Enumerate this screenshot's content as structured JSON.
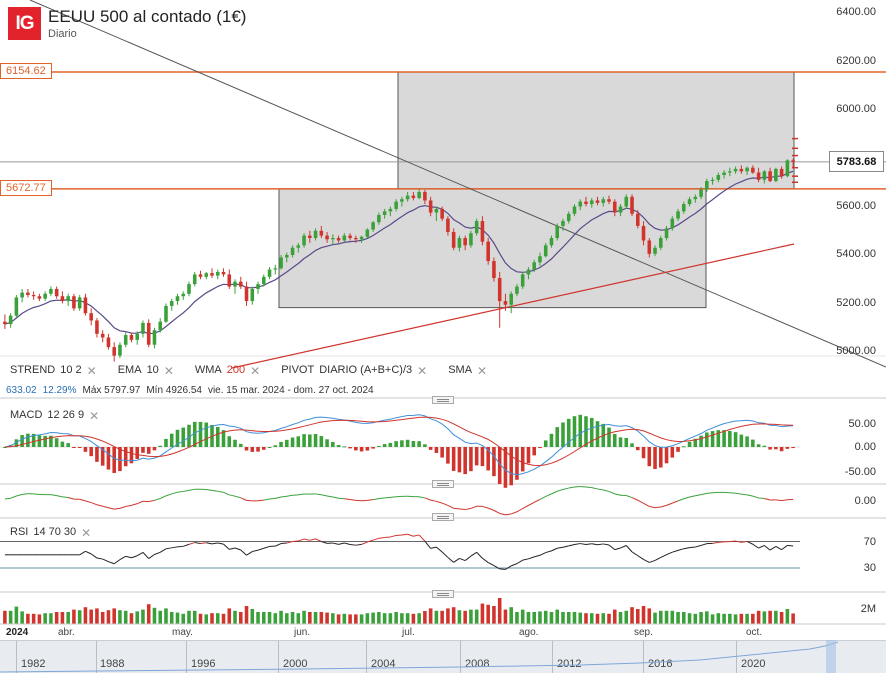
{
  "header": {
    "logo": "IG",
    "title": "EEUU 500 al contado (1€)",
    "subtitle": "Diario"
  },
  "price_axis": {
    "ticks": [
      "6400.00",
      "6200.00",
      "6000.00",
      "5800.00",
      "5600.00",
      "5400.00",
      "5200.00",
      "5000.00"
    ],
    "last_price": "5783.68"
  },
  "price_lines": {
    "upper": "6154.62",
    "lower": "5672.77"
  },
  "indicators": [
    {
      "name": "STREND",
      "params": "10  2",
      "color": "#333333"
    },
    {
      "name": "EMA",
      "params": "10",
      "color": "#333333"
    },
    {
      "name": "WMA",
      "params": "200",
      "color": "#d0342c"
    },
    {
      "name": "PIVOT",
      "params": "DIARIO  (A+B+C)/3",
      "color": "#333333"
    },
    {
      "name": "SMA",
      "params": "",
      "color": "#333333"
    }
  ],
  "stats": {
    "change": "633.02",
    "change_pct": "12.29%",
    "max": "Máx 5797.97",
    "min": "Mín 4926.54",
    "range": "vie. 15 mar. 2024 - dom. 27 oct. 2024"
  },
  "macd": {
    "label": "MACD",
    "params": "12  26  9",
    "ticks": [
      "50.00",
      "0.00",
      "-50.00"
    ],
    "lower_tick": "0.00"
  },
  "rsi": {
    "label": "RSI",
    "params": "14  70  30",
    "ticks": [
      "70",
      "30"
    ]
  },
  "volume": {
    "tick": "2M"
  },
  "x_axis": {
    "labels": [
      "2024",
      "abr.",
      "may.",
      "jun.",
      "jul.",
      "ago.",
      "sep.",
      "oct."
    ]
  },
  "navigator": {
    "years": [
      "1982",
      "1988",
      "1996",
      "2000",
      "2004",
      "2008",
      "2012",
      "2016",
      "2020"
    ]
  },
  "colors": {
    "up": "#3aa13a",
    "down": "#d0342c",
    "accent_line": "#e2632a",
    "ema": "#5a4a8a",
    "wma": "#d0342c",
    "trendline": "#555555",
    "box_fill": "#d9d9d9"
  },
  "chart_data": {
    "type": "candlestick",
    "title": "EEUU 500 al contado (1€)",
    "ylim": [
      4900,
      6450
    ],
    "y_ticks": [
      5000,
      5200,
      5400,
      5600,
      5800,
      6000,
      6200,
      6400
    ],
    "x_labels": [
      "abr.",
      "may.",
      "jun.",
      "jul.",
      "ago.",
      "sep.",
      "oct."
    ],
    "candles": [
      {
        "o": 5125,
        "h": 5155,
        "l": 5095,
        "c": 5115
      },
      {
        "o": 5115,
        "h": 5160,
        "l": 5100,
        "c": 5150
      },
      {
        "o": 5150,
        "h": 5235,
        "l": 5140,
        "c": 5225
      },
      {
        "o": 5225,
        "h": 5260,
        "l": 5205,
        "c": 5245
      },
      {
        "o": 5245,
        "h": 5260,
        "l": 5225,
        "c": 5235
      },
      {
        "o": 5235,
        "h": 5250,
        "l": 5215,
        "c": 5230
      },
      {
        "o": 5230,
        "h": 5240,
        "l": 5210,
        "c": 5220
      },
      {
        "o": 5220,
        "h": 5250,
        "l": 5210,
        "c": 5240
      },
      {
        "o": 5240,
        "h": 5270,
        "l": 5230,
        "c": 5260
      },
      {
        "o": 5260,
        "h": 5270,
        "l": 5220,
        "c": 5230
      },
      {
        "o": 5230,
        "h": 5250,
        "l": 5200,
        "c": 5210
      },
      {
        "o": 5210,
        "h": 5240,
        "l": 5190,
        "c": 5230
      },
      {
        "o": 5230,
        "h": 5240,
        "l": 5170,
        "c": 5180
      },
      {
        "o": 5180,
        "h": 5235,
        "l": 5170,
        "c": 5225
      },
      {
        "o": 5225,
        "h": 5240,
        "l": 5150,
        "c": 5160
      },
      {
        "o": 5160,
        "h": 5180,
        "l": 5110,
        "c": 5130
      },
      {
        "o": 5130,
        "h": 5140,
        "l": 5060,
        "c": 5075
      },
      {
        "o": 5075,
        "h": 5090,
        "l": 5040,
        "c": 5060
      },
      {
        "o": 5060,
        "h": 5075,
        "l": 5010,
        "c": 5020
      },
      {
        "o": 5020,
        "h": 5040,
        "l": 4960,
        "c": 4985
      },
      {
        "o": 4985,
        "h": 5040,
        "l": 4975,
        "c": 5030
      },
      {
        "o": 5030,
        "h": 5080,
        "l": 5020,
        "c": 5070
      },
      {
        "o": 5070,
        "h": 5080,
        "l": 5040,
        "c": 5050
      },
      {
        "o": 5050,
        "h": 5085,
        "l": 5030,
        "c": 5075
      },
      {
        "o": 5075,
        "h": 5130,
        "l": 5060,
        "c": 5120
      },
      {
        "o": 5120,
        "h": 5135,
        "l": 5020,
        "c": 5030
      },
      {
        "o": 5030,
        "h": 5100,
        "l": 5015,
        "c": 5090
      },
      {
        "o": 5090,
        "h": 5140,
        "l": 5080,
        "c": 5125
      },
      {
        "o": 5125,
        "h": 5200,
        "l": 5120,
        "c": 5190
      },
      {
        "o": 5190,
        "h": 5220,
        "l": 5170,
        "c": 5210
      },
      {
        "o": 5210,
        "h": 5240,
        "l": 5195,
        "c": 5230
      },
      {
        "o": 5230,
        "h": 5250,
        "l": 5215,
        "c": 5240
      },
      {
        "o": 5240,
        "h": 5290,
        "l": 5230,
        "c": 5280
      },
      {
        "o": 5280,
        "h": 5330,
        "l": 5270,
        "c": 5320
      },
      {
        "o": 5320,
        "h": 5335,
        "l": 5300,
        "c": 5310
      },
      {
        "o": 5310,
        "h": 5330,
        "l": 5300,
        "c": 5325
      },
      {
        "o": 5325,
        "h": 5345,
        "l": 5305,
        "c": 5315
      },
      {
        "o": 5315,
        "h": 5340,
        "l": 5300,
        "c": 5330
      },
      {
        "o": 5330,
        "h": 5345,
        "l": 5310,
        "c": 5320
      },
      {
        "o": 5320,
        "h": 5340,
        "l": 5260,
        "c": 5270
      },
      {
        "o": 5270,
        "h": 5300,
        "l": 5240,
        "c": 5290
      },
      {
        "o": 5290,
        "h": 5310,
        "l": 5260,
        "c": 5270
      },
      {
        "o": 5270,
        "h": 5290,
        "l": 5190,
        "c": 5210
      },
      {
        "o": 5210,
        "h": 5270,
        "l": 5195,
        "c": 5260
      },
      {
        "o": 5260,
        "h": 5290,
        "l": 5240,
        "c": 5280
      },
      {
        "o": 5280,
        "h": 5320,
        "l": 5270,
        "c": 5310
      },
      {
        "o": 5310,
        "h": 5350,
        "l": 5300,
        "c": 5340
      },
      {
        "o": 5340,
        "h": 5360,
        "l": 5320,
        "c": 5345
      },
      {
        "o": 5345,
        "h": 5400,
        "l": 5340,
        "c": 5390
      },
      {
        "o": 5390,
        "h": 5410,
        "l": 5370,
        "c": 5400
      },
      {
        "o": 5400,
        "h": 5440,
        "l": 5390,
        "c": 5430
      },
      {
        "o": 5430,
        "h": 5450,
        "l": 5410,
        "c": 5440
      },
      {
        "o": 5440,
        "h": 5490,
        "l": 5430,
        "c": 5480
      },
      {
        "o": 5480,
        "h": 5500,
        "l": 5450,
        "c": 5470
      },
      {
        "o": 5470,
        "h": 5510,
        "l": 5460,
        "c": 5500
      },
      {
        "o": 5500,
        "h": 5520,
        "l": 5470,
        "c": 5480
      },
      {
        "o": 5480,
        "h": 5495,
        "l": 5450,
        "c": 5465
      },
      {
        "o": 5465,
        "h": 5485,
        "l": 5445,
        "c": 5470
      },
      {
        "o": 5470,
        "h": 5480,
        "l": 5450,
        "c": 5460
      },
      {
        "o": 5460,
        "h": 5490,
        "l": 5455,
        "c": 5480
      },
      {
        "o": 5480,
        "h": 5490,
        "l": 5460,
        "c": 5470
      },
      {
        "o": 5470,
        "h": 5480,
        "l": 5450,
        "c": 5465
      },
      {
        "o": 5465,
        "h": 5480,
        "l": 5450,
        "c": 5475
      },
      {
        "o": 5475,
        "h": 5510,
        "l": 5470,
        "c": 5505
      },
      {
        "o": 5505,
        "h": 5540,
        "l": 5495,
        "c": 5535
      },
      {
        "o": 5535,
        "h": 5575,
        "l": 5525,
        "c": 5565
      },
      {
        "o": 5565,
        "h": 5590,
        "l": 5550,
        "c": 5580
      },
      {
        "o": 5580,
        "h": 5600,
        "l": 5560,
        "c": 5590
      },
      {
        "o": 5590,
        "h": 5630,
        "l": 5580,
        "c": 5620
      },
      {
        "o": 5620,
        "h": 5640,
        "l": 5600,
        "c": 5630
      },
      {
        "o": 5630,
        "h": 5660,
        "l": 5620,
        "c": 5645
      },
      {
        "o": 5645,
        "h": 5660,
        "l": 5625,
        "c": 5635
      },
      {
        "o": 5635,
        "h": 5670,
        "l": 5630,
        "c": 5660
      },
      {
        "o": 5660,
        "h": 5668,
        "l": 5610,
        "c": 5625
      },
      {
        "o": 5625,
        "h": 5640,
        "l": 5560,
        "c": 5575
      },
      {
        "o": 5575,
        "h": 5600,
        "l": 5540,
        "c": 5590
      },
      {
        "o": 5590,
        "h": 5600,
        "l": 5540,
        "c": 5550
      },
      {
        "o": 5550,
        "h": 5560,
        "l": 5480,
        "c": 5495
      },
      {
        "o": 5495,
        "h": 5510,
        "l": 5420,
        "c": 5430
      },
      {
        "o": 5430,
        "h": 5480,
        "l": 5415,
        "c": 5470
      },
      {
        "o": 5470,
        "h": 5480,
        "l": 5420,
        "c": 5440
      },
      {
        "o": 5440,
        "h": 5500,
        "l": 5430,
        "c": 5490
      },
      {
        "o": 5490,
        "h": 5550,
        "l": 5480,
        "c": 5540
      },
      {
        "o": 5540,
        "h": 5560,
        "l": 5440,
        "c": 5455
      },
      {
        "o": 5455,
        "h": 5470,
        "l": 5360,
        "c": 5375
      },
      {
        "o": 5375,
        "h": 5390,
        "l": 5290,
        "c": 5305
      },
      {
        "o": 5305,
        "h": 5330,
        "l": 5100,
        "c": 5210
      },
      {
        "o": 5210,
        "h": 5240,
        "l": 5170,
        "c": 5195
      },
      {
        "o": 5195,
        "h": 5250,
        "l": 5160,
        "c": 5240
      },
      {
        "o": 5240,
        "h": 5280,
        "l": 5230,
        "c": 5270
      },
      {
        "o": 5270,
        "h": 5330,
        "l": 5260,
        "c": 5320
      },
      {
        "o": 5320,
        "h": 5350,
        "l": 5300,
        "c": 5340
      },
      {
        "o": 5340,
        "h": 5380,
        "l": 5330,
        "c": 5370
      },
      {
        "o": 5370,
        "h": 5410,
        "l": 5355,
        "c": 5395
      },
      {
        "o": 5395,
        "h": 5450,
        "l": 5390,
        "c": 5440
      },
      {
        "o": 5440,
        "h": 5480,
        "l": 5430,
        "c": 5470
      },
      {
        "o": 5470,
        "h": 5530,
        "l": 5460,
        "c": 5520
      },
      {
        "o": 5520,
        "h": 5550,
        "l": 5500,
        "c": 5540
      },
      {
        "o": 5540,
        "h": 5580,
        "l": 5530,
        "c": 5570
      },
      {
        "o": 5570,
        "h": 5610,
        "l": 5560,
        "c": 5600
      },
      {
        "o": 5600,
        "h": 5630,
        "l": 5585,
        "c": 5620
      },
      {
        "o": 5620,
        "h": 5640,
        "l": 5600,
        "c": 5610
      },
      {
        "o": 5610,
        "h": 5635,
        "l": 5595,
        "c": 5625
      },
      {
        "o": 5625,
        "h": 5640,
        "l": 5605,
        "c": 5615
      },
      {
        "o": 5615,
        "h": 5640,
        "l": 5600,
        "c": 5630
      },
      {
        "o": 5630,
        "h": 5645,
        "l": 5610,
        "c": 5620
      },
      {
        "o": 5620,
        "h": 5630,
        "l": 5560,
        "c": 5575
      },
      {
        "o": 5575,
        "h": 5610,
        "l": 5560,
        "c": 5600
      },
      {
        "o": 5600,
        "h": 5650,
        "l": 5590,
        "c": 5640
      },
      {
        "o": 5640,
        "h": 5650,
        "l": 5560,
        "c": 5570
      },
      {
        "o": 5570,
        "h": 5585,
        "l": 5510,
        "c": 5520
      },
      {
        "o": 5520,
        "h": 5540,
        "l": 5440,
        "c": 5460
      },
      {
        "o": 5460,
        "h": 5470,
        "l": 5390,
        "c": 5405
      },
      {
        "o": 5405,
        "h": 5440,
        "l": 5395,
        "c": 5430
      },
      {
        "o": 5430,
        "h": 5480,
        "l": 5420,
        "c": 5470
      },
      {
        "o": 5470,
        "h": 5520,
        "l": 5460,
        "c": 5510
      },
      {
        "o": 5510,
        "h": 5560,
        "l": 5500,
        "c": 5550
      },
      {
        "o": 5550,
        "h": 5590,
        "l": 5540,
        "c": 5580
      },
      {
        "o": 5580,
        "h": 5620,
        "l": 5570,
        "c": 5610
      },
      {
        "o": 5610,
        "h": 5640,
        "l": 5600,
        "c": 5630
      },
      {
        "o": 5630,
        "h": 5650,
        "l": 5615,
        "c": 5640
      },
      {
        "o": 5640,
        "h": 5680,
        "l": 5630,
        "c": 5670
      },
      {
        "o": 5670,
        "h": 5715,
        "l": 5660,
        "c": 5705
      },
      {
        "o": 5705,
        "h": 5720,
        "l": 5690,
        "c": 5710
      },
      {
        "o": 5710,
        "h": 5740,
        "l": 5700,
        "c": 5730
      },
      {
        "o": 5730,
        "h": 5750,
        "l": 5715,
        "c": 5740
      },
      {
        "o": 5740,
        "h": 5760,
        "l": 5725,
        "c": 5745
      },
      {
        "o": 5745,
        "h": 5765,
        "l": 5735,
        "c": 5755
      },
      {
        "o": 5755,
        "h": 5770,
        "l": 5735,
        "c": 5745
      },
      {
        "o": 5745,
        "h": 5765,
        "l": 5730,
        "c": 5760
      },
      {
        "o": 5760,
        "h": 5770,
        "l": 5735,
        "c": 5740
      },
      {
        "o": 5740,
        "h": 5760,
        "l": 5700,
        "c": 5710
      },
      {
        "o": 5710,
        "h": 5750,
        "l": 5695,
        "c": 5745
      },
      {
        "o": 5745,
        "h": 5760,
        "l": 5700,
        "c": 5705
      },
      {
        "o": 5705,
        "h": 5760,
        "l": 5700,
        "c": 5755
      },
      {
        "o": 5755,
        "h": 5765,
        "l": 5715,
        "c": 5725
      },
      {
        "o": 5725,
        "h": 5795,
        "l": 5720,
        "c": 5790
      },
      {
        "o": 5790,
        "h": 5798,
        "l": 5760,
        "c": 5784
      }
    ]
  }
}
